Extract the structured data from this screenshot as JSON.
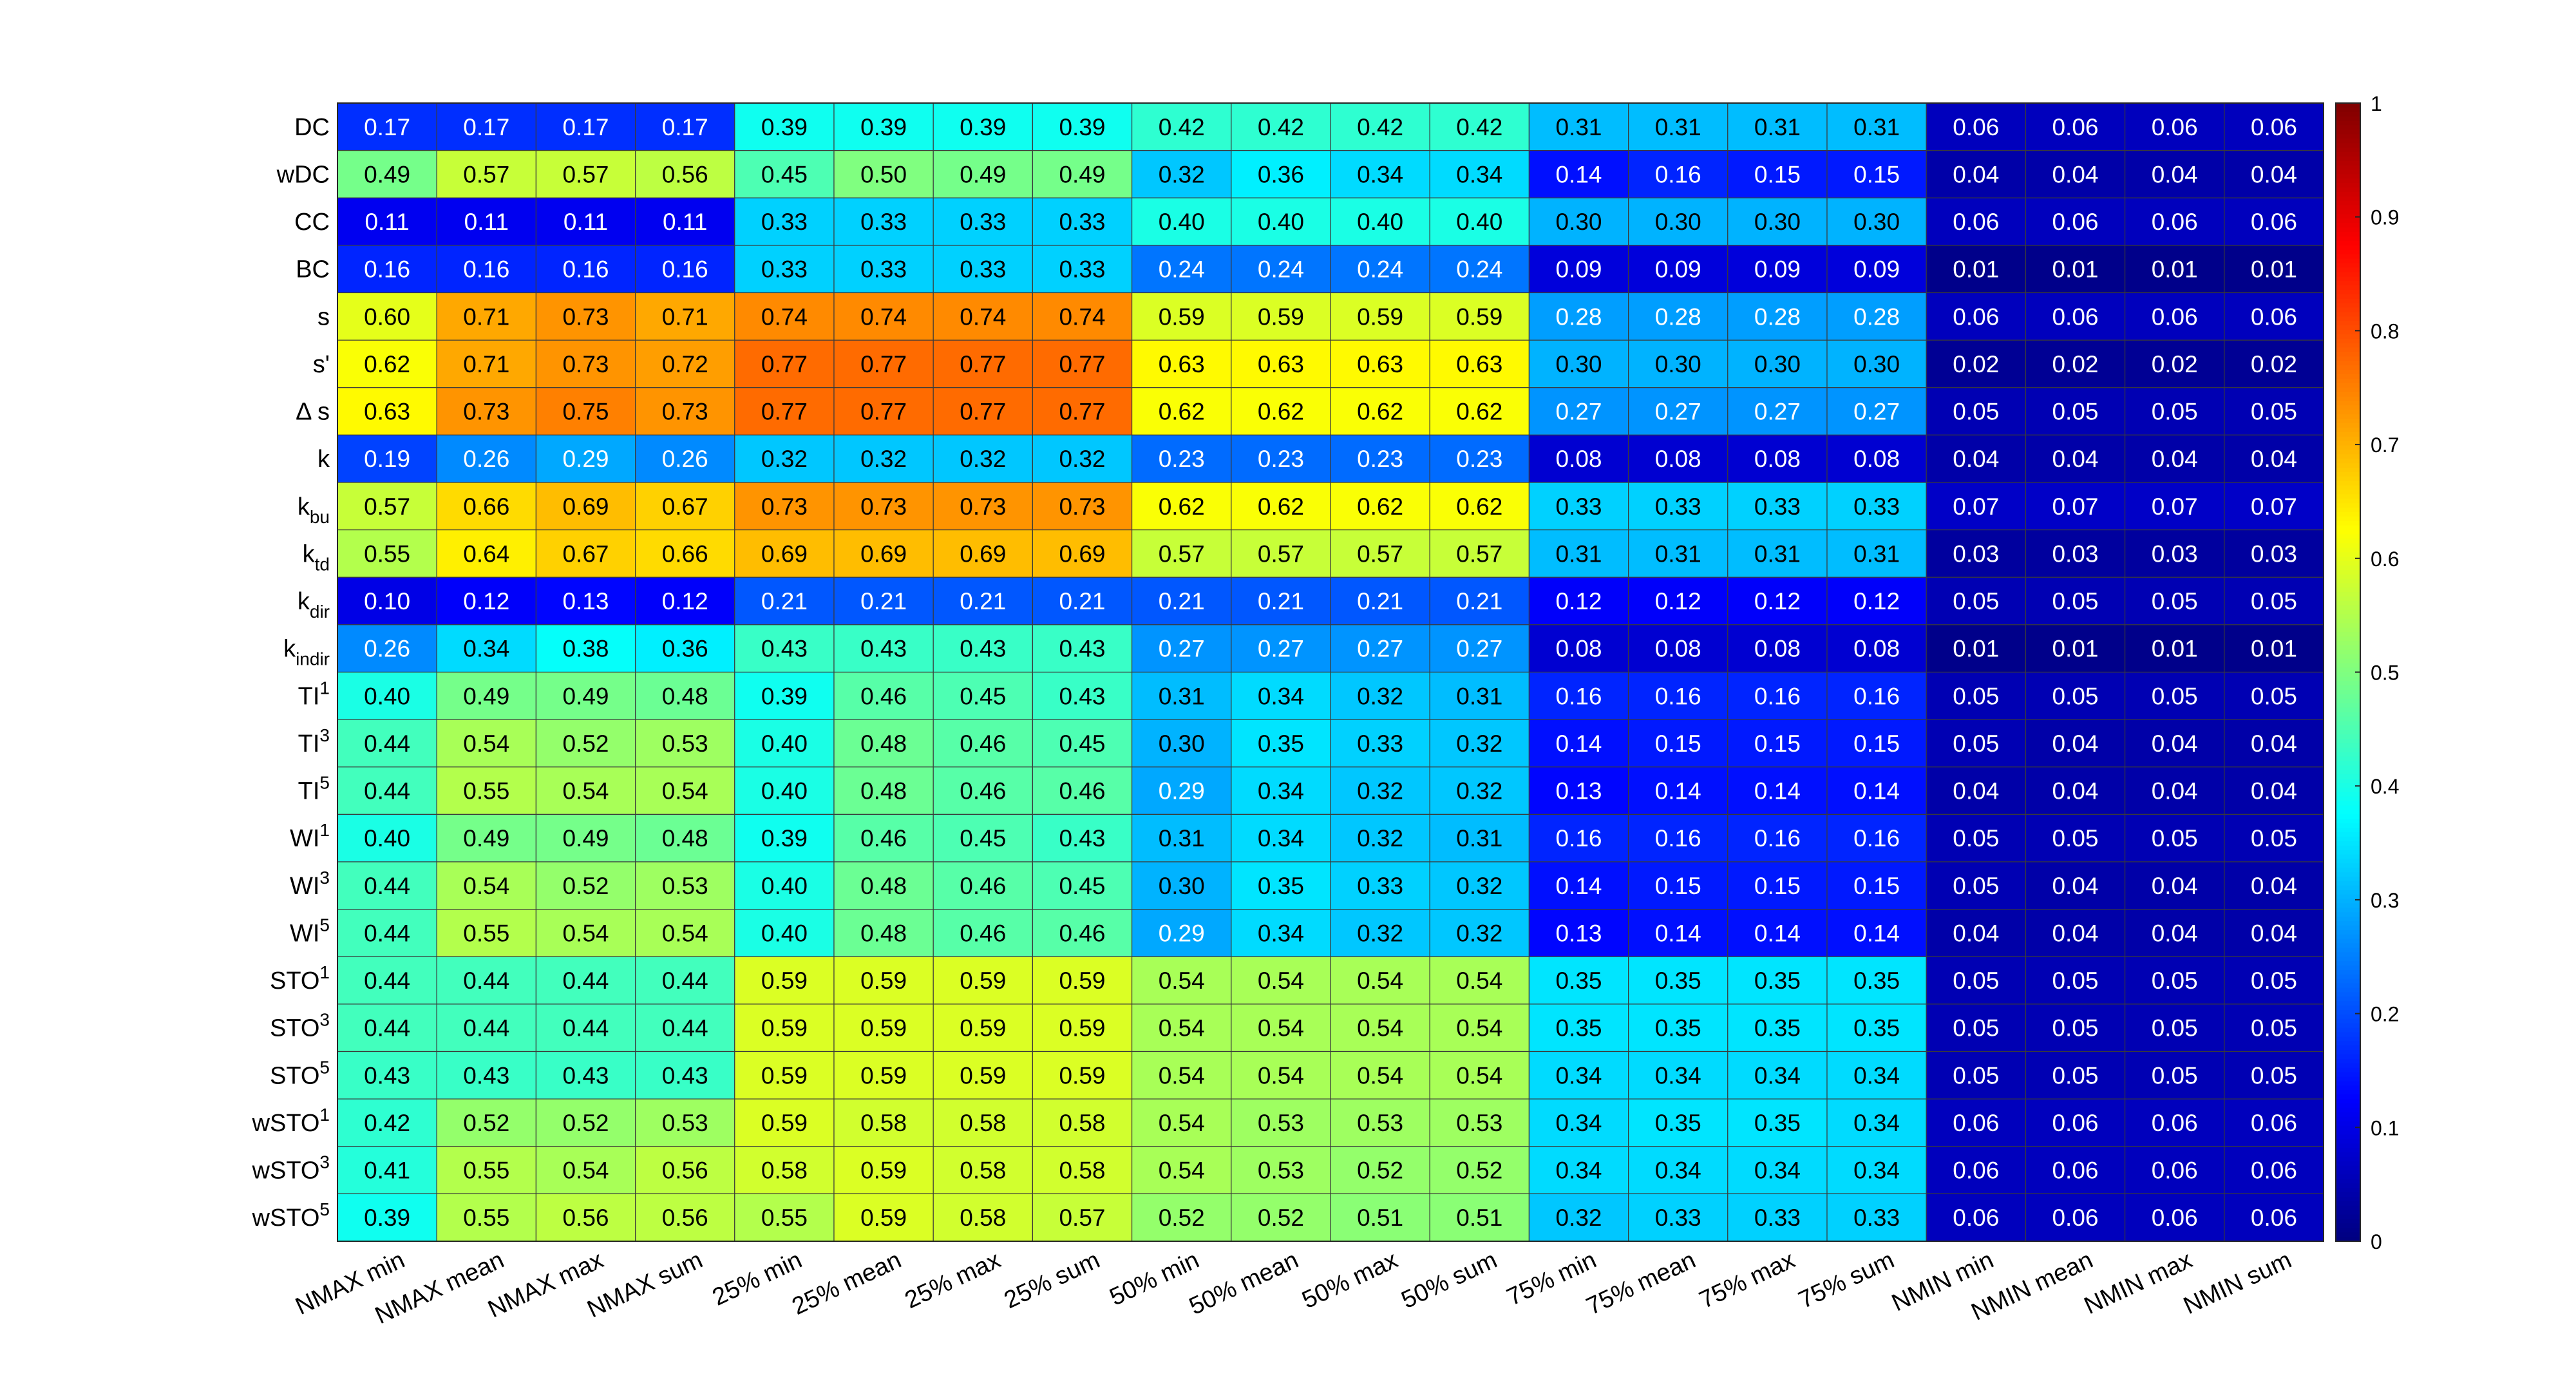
{
  "chart_data": {
    "type": "heatmap",
    "colormap": "jet",
    "clim": [
      0,
      1
    ],
    "colorbar": {
      "position": "right",
      "ticks": [
        0,
        0.1,
        0.2,
        0.3,
        0.4,
        0.5,
        0.6,
        0.7,
        0.8,
        0.9,
        1
      ],
      "tick_labels": [
        "0",
        "0.1",
        "0.2",
        "0.3",
        "0.4",
        "0.5",
        "0.6",
        "0.7",
        "0.8",
        "0.9",
        "1"
      ]
    },
    "columns": [
      "NMAX min",
      "NMAX mean",
      "NMAX max",
      "NMAX sum",
      "25% min",
      "25% mean",
      "25% max",
      "25% sum",
      "50% min",
      "50% mean",
      "50% max",
      "50% sum",
      "75% min",
      "75% mean",
      "75% max",
      "75% sum",
      "NMIN min",
      "NMIN mean",
      "NMIN max",
      "NMIN sum"
    ],
    "rows": [
      {
        "base": "DC",
        "sup": "",
        "sub": ""
      },
      {
        "base": "wDC",
        "sup": "",
        "sub": ""
      },
      {
        "base": "CC",
        "sup": "",
        "sub": ""
      },
      {
        "base": "BC",
        "sup": "",
        "sub": ""
      },
      {
        "base": "s",
        "sup": "",
        "sub": ""
      },
      {
        "base": "s'",
        "sup": "",
        "sub": ""
      },
      {
        "base": "Δ s",
        "sup": "",
        "sub": ""
      },
      {
        "base": "k",
        "sup": "",
        "sub": ""
      },
      {
        "base": "k",
        "sup": "",
        "sub": "bu"
      },
      {
        "base": "k",
        "sup": "",
        "sub": "td"
      },
      {
        "base": "k",
        "sup": "",
        "sub": "dir"
      },
      {
        "base": "k",
        "sup": "",
        "sub": "indir"
      },
      {
        "base": "TI",
        "sup": "1",
        "sub": ""
      },
      {
        "base": "TI",
        "sup": "3",
        "sub": ""
      },
      {
        "base": "TI",
        "sup": "5",
        "sub": ""
      },
      {
        "base": "WI",
        "sup": "1",
        "sub": ""
      },
      {
        "base": "WI",
        "sup": "3",
        "sub": ""
      },
      {
        "base": "WI",
        "sup": "5",
        "sub": ""
      },
      {
        "base": "STO",
        "sup": "1",
        "sub": ""
      },
      {
        "base": "STO",
        "sup": "3",
        "sub": ""
      },
      {
        "base": "STO",
        "sup": "5",
        "sub": ""
      },
      {
        "base": "wSTO",
        "sup": "1",
        "sub": ""
      },
      {
        "base": "wSTO",
        "sup": "3",
        "sub": ""
      },
      {
        "base": "wSTO",
        "sup": "5",
        "sub": ""
      }
    ],
    "values": [
      [
        0.17,
        0.17,
        0.17,
        0.17,
        0.39,
        0.39,
        0.39,
        0.39,
        0.42,
        0.42,
        0.42,
        0.42,
        0.31,
        0.31,
        0.31,
        0.31,
        0.06,
        0.06,
        0.06,
        0.06
      ],
      [
        0.49,
        0.57,
        0.57,
        0.56,
        0.45,
        0.5,
        0.49,
        0.49,
        0.32,
        0.36,
        0.34,
        0.34,
        0.14,
        0.16,
        0.15,
        0.15,
        0.04,
        0.04,
        0.04,
        0.04
      ],
      [
        0.11,
        0.11,
        0.11,
        0.11,
        0.33,
        0.33,
        0.33,
        0.33,
        0.4,
        0.4,
        0.4,
        0.4,
        0.3,
        0.3,
        0.3,
        0.3,
        0.06,
        0.06,
        0.06,
        0.06
      ],
      [
        0.16,
        0.16,
        0.16,
        0.16,
        0.33,
        0.33,
        0.33,
        0.33,
        0.24,
        0.24,
        0.24,
        0.24,
        0.09,
        0.09,
        0.09,
        0.09,
        0.01,
        0.01,
        0.01,
        0.01
      ],
      [
        0.6,
        0.71,
        0.73,
        0.71,
        0.74,
        0.74,
        0.74,
        0.74,
        0.59,
        0.59,
        0.59,
        0.59,
        0.28,
        0.28,
        0.28,
        0.28,
        0.06,
        0.06,
        0.06,
        0.06
      ],
      [
        0.62,
        0.71,
        0.73,
        0.72,
        0.77,
        0.77,
        0.77,
        0.77,
        0.63,
        0.63,
        0.63,
        0.63,
        0.3,
        0.3,
        0.3,
        0.3,
        0.02,
        0.02,
        0.02,
        0.02
      ],
      [
        0.63,
        0.73,
        0.75,
        0.73,
        0.77,
        0.77,
        0.77,
        0.77,
        0.62,
        0.62,
        0.62,
        0.62,
        0.27,
        0.27,
        0.27,
        0.27,
        0.05,
        0.05,
        0.05,
        0.05
      ],
      [
        0.19,
        0.26,
        0.29,
        0.26,
        0.32,
        0.32,
        0.32,
        0.32,
        0.23,
        0.23,
        0.23,
        0.23,
        0.08,
        0.08,
        0.08,
        0.08,
        0.04,
        0.04,
        0.04,
        0.04
      ],
      [
        0.57,
        0.66,
        0.69,
        0.67,
        0.73,
        0.73,
        0.73,
        0.73,
        0.62,
        0.62,
        0.62,
        0.62,
        0.33,
        0.33,
        0.33,
        0.33,
        0.07,
        0.07,
        0.07,
        0.07
      ],
      [
        0.55,
        0.64,
        0.67,
        0.66,
        0.69,
        0.69,
        0.69,
        0.69,
        0.57,
        0.57,
        0.57,
        0.57,
        0.31,
        0.31,
        0.31,
        0.31,
        0.03,
        0.03,
        0.03,
        0.03
      ],
      [
        0.1,
        0.12,
        0.13,
        0.12,
        0.21,
        0.21,
        0.21,
        0.21,
        0.21,
        0.21,
        0.21,
        0.21,
        0.12,
        0.12,
        0.12,
        0.12,
        0.05,
        0.05,
        0.05,
        0.05
      ],
      [
        0.26,
        0.34,
        0.38,
        0.36,
        0.43,
        0.43,
        0.43,
        0.43,
        0.27,
        0.27,
        0.27,
        0.27,
        0.08,
        0.08,
        0.08,
        0.08,
        0.01,
        0.01,
        0.01,
        0.01
      ],
      [
        0.4,
        0.49,
        0.49,
        0.48,
        0.39,
        0.46,
        0.45,
        0.43,
        0.31,
        0.34,
        0.32,
        0.31,
        0.16,
        0.16,
        0.16,
        0.16,
        0.05,
        0.05,
        0.05,
        0.05
      ],
      [
        0.44,
        0.54,
        0.52,
        0.53,
        0.4,
        0.48,
        0.46,
        0.45,
        0.3,
        0.35,
        0.33,
        0.32,
        0.14,
        0.15,
        0.15,
        0.15,
        0.05,
        0.04,
        0.04,
        0.04
      ],
      [
        0.44,
        0.55,
        0.54,
        0.54,
        0.4,
        0.48,
        0.46,
        0.46,
        0.29,
        0.34,
        0.32,
        0.32,
        0.13,
        0.14,
        0.14,
        0.14,
        0.04,
        0.04,
        0.04,
        0.04
      ],
      [
        0.4,
        0.49,
        0.49,
        0.48,
        0.39,
        0.46,
        0.45,
        0.43,
        0.31,
        0.34,
        0.32,
        0.31,
        0.16,
        0.16,
        0.16,
        0.16,
        0.05,
        0.05,
        0.05,
        0.05
      ],
      [
        0.44,
        0.54,
        0.52,
        0.53,
        0.4,
        0.48,
        0.46,
        0.45,
        0.3,
        0.35,
        0.33,
        0.32,
        0.14,
        0.15,
        0.15,
        0.15,
        0.05,
        0.04,
        0.04,
        0.04
      ],
      [
        0.44,
        0.55,
        0.54,
        0.54,
        0.4,
        0.48,
        0.46,
        0.46,
        0.29,
        0.34,
        0.32,
        0.32,
        0.13,
        0.14,
        0.14,
        0.14,
        0.04,
        0.04,
        0.04,
        0.04
      ],
      [
        0.44,
        0.44,
        0.44,
        0.44,
        0.59,
        0.59,
        0.59,
        0.59,
        0.54,
        0.54,
        0.54,
        0.54,
        0.35,
        0.35,
        0.35,
        0.35,
        0.05,
        0.05,
        0.05,
        0.05
      ],
      [
        0.44,
        0.44,
        0.44,
        0.44,
        0.59,
        0.59,
        0.59,
        0.59,
        0.54,
        0.54,
        0.54,
        0.54,
        0.35,
        0.35,
        0.35,
        0.35,
        0.05,
        0.05,
        0.05,
        0.05
      ],
      [
        0.43,
        0.43,
        0.43,
        0.43,
        0.59,
        0.59,
        0.59,
        0.59,
        0.54,
        0.54,
        0.54,
        0.54,
        0.34,
        0.34,
        0.34,
        0.34,
        0.05,
        0.05,
        0.05,
        0.05
      ],
      [
        0.42,
        0.52,
        0.52,
        0.53,
        0.59,
        0.58,
        0.58,
        0.58,
        0.54,
        0.53,
        0.53,
        0.53,
        0.34,
        0.35,
        0.35,
        0.34,
        0.06,
        0.06,
        0.06,
        0.06
      ],
      [
        0.41,
        0.55,
        0.54,
        0.56,
        0.58,
        0.59,
        0.58,
        0.58,
        0.54,
        0.53,
        0.52,
        0.52,
        0.34,
        0.34,
        0.34,
        0.34,
        0.06,
        0.06,
        0.06,
        0.06
      ],
      [
        0.39,
        0.55,
        0.56,
        0.56,
        0.55,
        0.59,
        0.58,
        0.57,
        0.52,
        0.52,
        0.51,
        0.51,
        0.32,
        0.33,
        0.33,
        0.33,
        0.06,
        0.06,
        0.06,
        0.06
      ]
    ]
  }
}
